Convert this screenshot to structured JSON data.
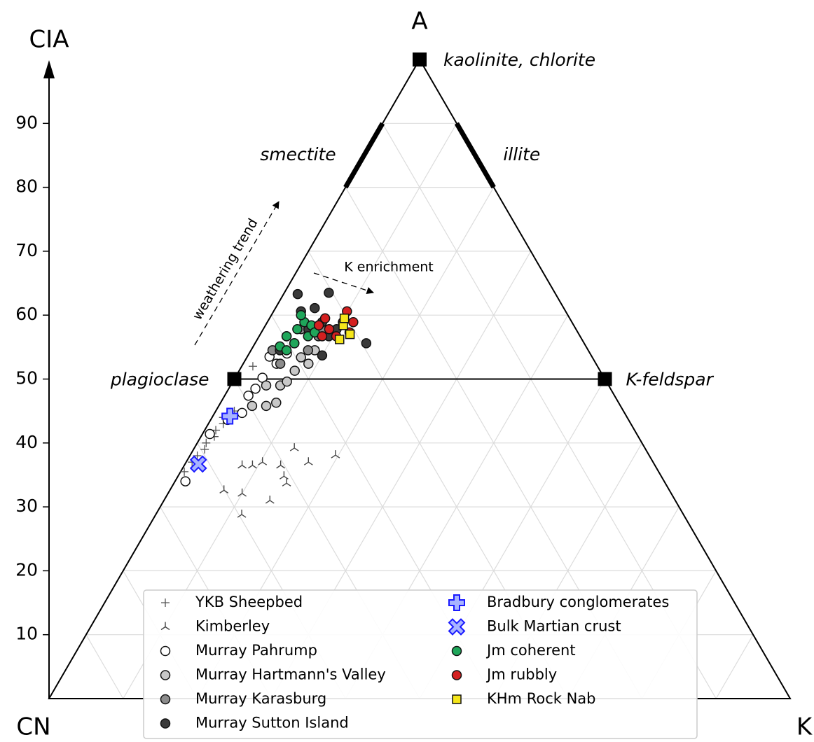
{
  "chart_data": {
    "type": "ternary",
    "y_label": "CIA",
    "corners": {
      "top": "A",
      "left": "CN",
      "right": "K"
    },
    "ylim": [
      0,
      100
    ],
    "yticks": [
      10,
      20,
      30,
      40,
      50,
      60,
      70,
      80,
      90
    ],
    "grid": true,
    "minerals": [
      {
        "label": "kaolinite, chlorite",
        "cia": 100,
        "k": 0
      },
      {
        "label": "plagioclase",
        "cia": 50,
        "k": 0
      },
      {
        "label": "K-feldspar",
        "cia": 50,
        "k": 50
      }
    ],
    "clay_ranges": [
      {
        "label": "smectite",
        "cia": [
          80,
          90
        ],
        "side": "left"
      },
      {
        "label": "illite",
        "cia": [
          80,
          90
        ],
        "side": "right"
      }
    ],
    "annotations": [
      "weathering trend",
      "K enrichment"
    ],
    "series": [
      {
        "name": "YKB Sheepbed",
        "marker": "plus",
        "color": "#555555",
        "cia": [
          35.5,
          37,
          38,
          39,
          40,
          41,
          42,
          43,
          44,
          45,
          52
        ],
        "k": [
          0.5,
          0.8,
          1,
          1.5,
          1.2,
          1.8,
          1.5,
          2,
          1.5,
          2.5,
          1.5
        ]
      },
      {
        "name": "Kimberley",
        "marker": "tri",
        "color": "#444444",
        "cia": [
          39.2,
          36.5,
          32.6,
          28.8,
          31,
          37,
          38.1,
          33.7,
          36.5,
          37,
          36.5,
          32.1,
          34.8
        ],
        "k": [
          13.5,
          7.8,
          7.3,
          11.6,
          14.3,
          16.5,
          19.6,
          15.2,
          9.2,
          10.3,
          13,
          10,
          14.3
        ]
      },
      {
        "name": "Murray Pahrump",
        "marker": "circle",
        "color": "#ffffff",
        "cia": [
          34,
          41.4,
          43.6,
          47.4,
          50.2,
          52.4,
          53.5,
          54,
          44.7,
          48.5
        ],
        "k": [
          1.4,
          1,
          2.3,
          3.2,
          3.7,
          4.5,
          3,
          5.1,
          3.7,
          3.6
        ]
      },
      {
        "name": "Murray Hartmann's Valley",
        "marker": "circle",
        "color": "#c8c8c8",
        "cia": [
          45.8,
          49,
          51.3,
          53.4,
          49,
          46.3,
          49.6,
          52.4,
          45.8,
          54.5
        ],
        "k": [
          6.4,
          6.7,
          7.5,
          7.3,
          4.8,
          7.5,
          7.3,
          8.8,
          4.5,
          8.6
        ]
      },
      {
        "name": "Murray Karasburg",
        "marker": "circle",
        "color": "#8c8c8c",
        "cia": [
          52.4,
          55.6,
          54.5,
          56.7,
          57.8,
          54.5,
          57.8
        ],
        "k": [
          5,
          5.3,
          7.7,
          8,
          5.1,
          2.9,
          8
        ]
      },
      {
        "name": "Murray Sutton Island",
        "marker": "circle",
        "color": "#3a3a3a",
        "cia": [
          63.3,
          63.5,
          55.6,
          60.6,
          61.1,
          58.9,
          57.8,
          56.7,
          53.7,
          57.8,
          56.7,
          54.5
        ],
        "k": [
          1.9,
          6,
          15,
          3.7,
          5.3,
          7.4,
          6.1,
          9.4,
          10,
          9.9,
          3.7,
          3.9
        ]
      },
      {
        "name": "Bradbury conglomerates",
        "marker": "bigplus",
        "color": "#a8b4ff",
        "cia": [
          44.2
        ],
        "k": [
          2.3
        ]
      },
      {
        "name": "Bulk Martian crust",
        "marker": "bigcross",
        "color": "#a8b4ff",
        "cia": [
          36.7
        ],
        "k": [
          1.8
        ]
      },
      {
        "name": "Jm coherent",
        "marker": "circle",
        "color": "#1fa65a",
        "cia": [
          55.1,
          56.7,
          57.8,
          58.9,
          60,
          58.4,
          55.6,
          56.7,
          54.5,
          57.3
        ],
        "k": [
          3.6,
          3.7,
          4.6,
          5,
          4,
          6.2,
          5.3,
          6.6,
          4.8,
          7.2
        ]
      },
      {
        "name": "Jm rubbly",
        "marker": "circle",
        "color": "#d42020",
        "cia": [
          58.4,
          57.8,
          58.9,
          60.6,
          58.9,
          56.7,
          59.5,
          56.7,
          57.3
        ],
        "k": [
          7.2,
          8.9,
          10.2,
          9.9,
          11.6,
          10.4,
          7.5,
          8.5,
          11.9
        ]
      },
      {
        "name": "KHm Rock Nab",
        "marker": "square",
        "color": "#f5e61a",
        "cia": [
          58.4,
          56.2,
          57,
          59.5
        ],
        "k": [
          10.5,
          11.1,
          12.1,
          10.1
        ]
      }
    ]
  }
}
